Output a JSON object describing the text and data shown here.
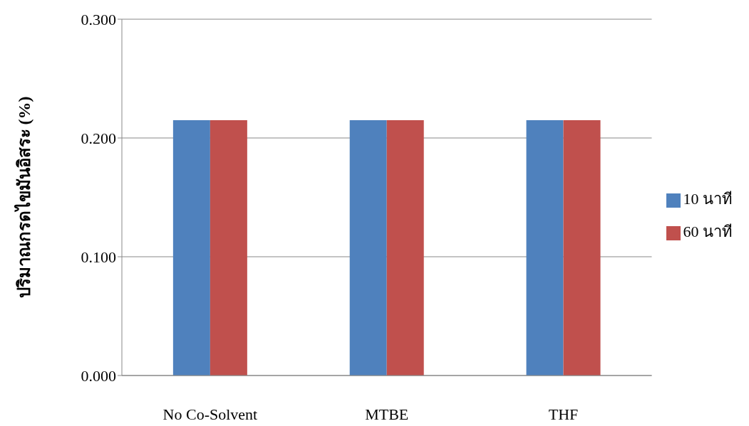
{
  "chart_data": {
    "type": "bar",
    "ylabel": "ปริมาณกรดไขมันอิสระ (%)",
    "categories": [
      "No Co-Solvent",
      "MTBE",
      "THF"
    ],
    "series": [
      {
        "name": "10 นาที",
        "color": "#4f81bd",
        "values": [
          0.215,
          0.215,
          0.215
        ]
      },
      {
        "name": "60 นาที",
        "color": "#c0504d",
        "values": [
          0.215,
          0.215,
          0.215
        ]
      }
    ],
    "ylim": [
      0,
      0.3
    ],
    "yticks": [
      {
        "value": 0,
        "label": "0.000"
      },
      {
        "value": 0.1,
        "label": "0.100"
      },
      {
        "value": 0.2,
        "label": "0.200"
      },
      {
        "value": 0.3,
        "label": "0.300"
      }
    ],
    "grid": "y",
    "legend": "right"
  }
}
